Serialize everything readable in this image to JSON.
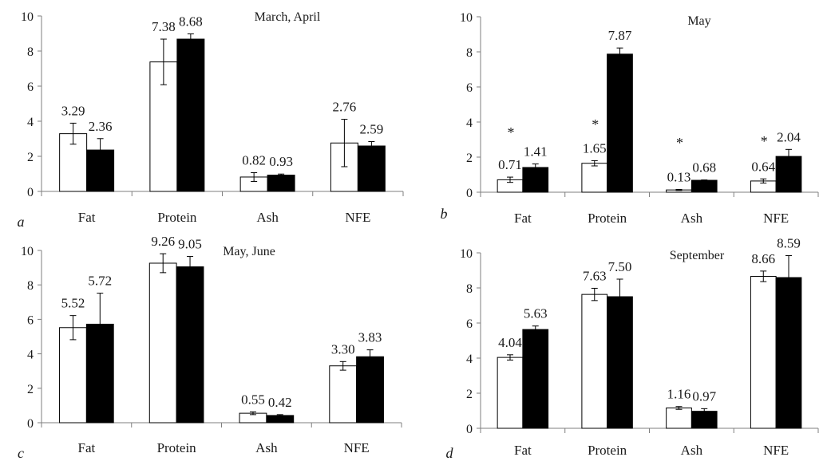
{
  "chart_data": [
    {
      "type": "bar",
      "panel_label": "a",
      "title": "March, April",
      "categories": [
        "Fat",
        "Protein",
        "Ash",
        "NFE"
      ],
      "ylim": [
        0,
        10
      ],
      "yticks": [
        "0",
        "2",
        "4",
        "6",
        "8",
        "10"
      ],
      "series": [
        {
          "fill": "white",
          "values": [
            3.29,
            7.38,
            0.82,
            2.76
          ],
          "errors": [
            0.6,
            1.3,
            0.25,
            1.35
          ],
          "labels": [
            "3.29",
            "7.38",
            "0.82",
            "2.76"
          ]
        },
        {
          "fill": "black",
          "values": [
            2.36,
            8.68,
            0.93,
            2.59
          ],
          "errors": [
            0.65,
            0.3,
            0.06,
            0.25
          ],
          "labels": [
            "2.36",
            "8.68",
            "0.93",
            "2.59"
          ]
        }
      ],
      "asterisks": []
    },
    {
      "type": "bar",
      "panel_label": "b",
      "title": "May",
      "categories": [
        "Fat",
        "Protein",
        "Ash",
        "NFE"
      ],
      "ylim": [
        0,
        10
      ],
      "yticks": [
        "0",
        "2",
        "4",
        "6",
        "8",
        "10"
      ],
      "series": [
        {
          "fill": "white",
          "values": [
            0.71,
            1.65,
            0.13,
            0.64
          ],
          "errors": [
            0.15,
            0.15,
            0.03,
            0.12
          ],
          "labels": [
            "0.71",
            "1.65",
            "0.13",
            "0.64"
          ]
        },
        {
          "fill": "black",
          "values": [
            1.41,
            7.87,
            0.68,
            2.04
          ],
          "errors": [
            0.2,
            0.35,
            0.02,
            0.4
          ],
          "labels": [
            "1.41",
            "7.87",
            "0.68",
            "2.04"
          ]
        }
      ],
      "asterisks": [
        "*",
        "*",
        "*",
        "*"
      ]
    },
    {
      "type": "bar",
      "panel_label": "c",
      "title": "May, June",
      "categories": [
        "Fat",
        "Protein",
        "Ash",
        "NFE"
      ],
      "ylim": [
        0,
        10
      ],
      "yticks": [
        "0",
        "2",
        "4",
        "6",
        "8",
        "10"
      ],
      "series": [
        {
          "fill": "white",
          "values": [
            5.52,
            9.26,
            0.55,
            3.3
          ],
          "errors": [
            0.7,
            0.55,
            0.08,
            0.25
          ],
          "labels": [
            "5.52",
            "9.26",
            "0.55",
            "3.30"
          ]
        },
        {
          "fill": "black",
          "values": [
            5.72,
            9.05,
            0.42,
            3.83
          ],
          "errors": [
            1.8,
            0.6,
            0.05,
            0.4
          ],
          "labels": [
            "5.72",
            "9.05",
            "0.42",
            "3.83"
          ]
        }
      ],
      "asterisks": []
    },
    {
      "type": "bar",
      "panel_label": "d",
      "title": "September",
      "categories": [
        "Fat",
        "Protein",
        "Ash",
        "NFE"
      ],
      "ylim": [
        0,
        10
      ],
      "yticks": [
        "0",
        "2",
        "4",
        "6",
        "8",
        "10"
      ],
      "series": [
        {
          "fill": "white",
          "values": [
            4.04,
            7.63,
            1.16,
            8.66
          ],
          "errors": [
            0.15,
            0.35,
            0.08,
            0.3
          ],
          "labels": [
            "4.04",
            "7.63",
            "1.16",
            "8.66"
          ]
        },
        {
          "fill": "black",
          "values": [
            5.63,
            7.5,
            0.97,
            8.59
          ],
          "errors": [
            0.2,
            1.0,
            0.15,
            1.25
          ],
          "labels": [
            "5.63",
            "7.50",
            "0.97",
            "8.59"
          ]
        }
      ],
      "asterisks": []
    }
  ]
}
